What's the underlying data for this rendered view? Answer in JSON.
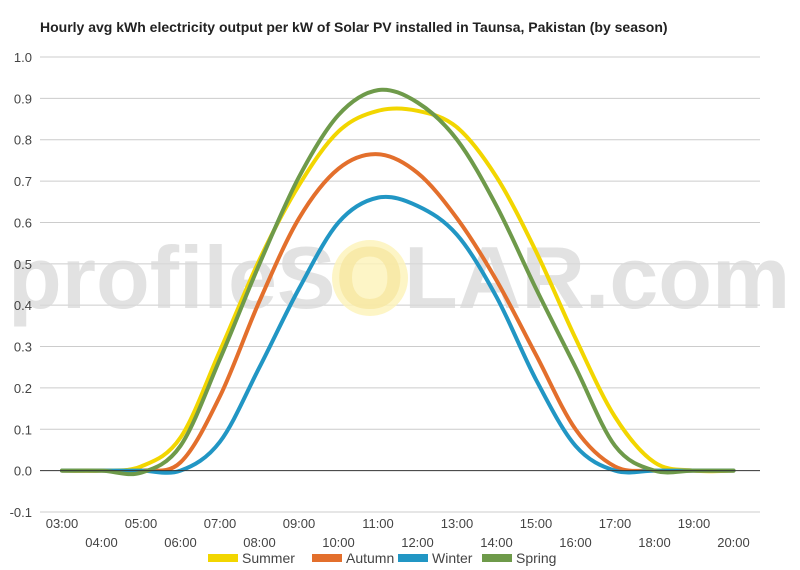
{
  "watermark": {
    "left": "profileS",
    "sun": "O",
    "right": "LAR.com"
  },
  "chart_data": {
    "type": "line",
    "title": "Hourly avg kWh electricity output per kW of Solar PV installed in Taunsa, Pakistan (by season)",
    "xlabel": "",
    "ylabel": "",
    "x": [
      "03:00",
      "04:00",
      "05:00",
      "06:00",
      "07:00",
      "08:00",
      "09:00",
      "10:00",
      "11:00",
      "12:00",
      "13:00",
      "14:00",
      "15:00",
      "16:00",
      "17:00",
      "18:00",
      "19:00",
      "20:00"
    ],
    "ylim": [
      -0.1,
      1.0
    ],
    "yticks": [
      -0.1,
      0.0,
      0.1,
      0.2,
      0.3,
      0.4,
      0.5,
      0.6,
      0.7,
      0.8,
      0.9,
      1.0
    ],
    "grid": true,
    "legend_position": "bottom",
    "series": [
      {
        "name": "Summer",
        "color": "#f2d600",
        "values": [
          0.0,
          0.0,
          0.01,
          0.08,
          0.29,
          0.51,
          0.69,
          0.82,
          0.87,
          0.87,
          0.83,
          0.71,
          0.53,
          0.32,
          0.13,
          0.02,
          0.0,
          0.0
        ]
      },
      {
        "name": "Autumn",
        "color": "#e36f2c",
        "values": [
          0.0,
          0.0,
          0.0,
          0.02,
          0.18,
          0.41,
          0.61,
          0.73,
          0.765,
          0.72,
          0.61,
          0.46,
          0.28,
          0.1,
          0.01,
          0.0,
          0.0,
          0.0
        ]
      },
      {
        "name": "Winter",
        "color": "#2196c4",
        "values": [
          0.0,
          0.0,
          0.0,
          0.0,
          0.07,
          0.25,
          0.44,
          0.6,
          0.66,
          0.64,
          0.57,
          0.42,
          0.22,
          0.06,
          0.0,
          0.0,
          0.0,
          0.0
        ]
      },
      {
        "name": "Spring",
        "color": "#6e9a4a",
        "values": [
          0.0,
          0.0,
          -0.005,
          0.06,
          0.27,
          0.5,
          0.71,
          0.86,
          0.92,
          0.89,
          0.8,
          0.64,
          0.44,
          0.25,
          0.06,
          0.0,
          0.0,
          0.0
        ]
      }
    ]
  }
}
